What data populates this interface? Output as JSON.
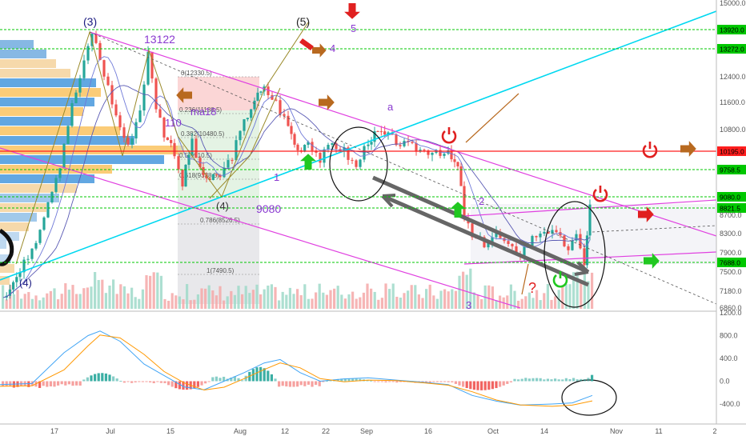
{
  "chart_data": {
    "type": "candlestick",
    "price_axis": {
      "ylim": [
        6860,
        15000
      ],
      "ticks": [
        "15000.0",
        "13920.0",
        "13272.0",
        "12400.0",
        "11600.0",
        "10800.0",
        "10195.0",
        "9758.5",
        "9080.0",
        "8821.5",
        "8700.0",
        "8300.0",
        "7900.0",
        "7688.0",
        "7500.0",
        "7180.0",
        "6860.0"
      ]
    },
    "indicator_axis": {
      "ylim": [
        -600,
        1200
      ],
      "ticks": [
        "1200.0",
        "800.0",
        "400.0",
        "0.0",
        "-400.0"
      ]
    },
    "x_ticks": [
      "17",
      "Jul",
      "15",
      "Aug",
      "12",
      "22",
      "Sep",
      "16",
      "Oct",
      "14",
      "Nov",
      "11",
      "2"
    ],
    "levels": [
      {
        "value": 13920,
        "label": "13920.0",
        "color": "#00c800"
      },
      {
        "value": 13272,
        "label": "13272.0",
        "color": "#00c800"
      },
      {
        "value": 10195,
        "label": "10195.0",
        "color": "#ff1e1e"
      },
      {
        "value": 9758.5,
        "label": "9758.5",
        "color": "#00c800"
      },
      {
        "value": 9080,
        "label": "9080.0",
        "color": "#00c800"
      },
      {
        "value": 8821.5,
        "label": "8821.5",
        "color": "#00c800"
      },
      {
        "value": 7688,
        "label": "7688.0",
        "color": "#00c800"
      }
    ],
    "fib_labels": [
      "0(12330.5)",
      "0.236(11188.5)",
      "0.382(10480.5)",
      "0.5(9910.5)",
      "0.618(9338.5)",
      "0.786(8526.5)",
      "1(7490.5)"
    ],
    "annotations": [
      "(3)",
      "(5)",
      "5",
      "4",
      "13122",
      "ma18",
      "110",
      "(4)",
      "9080",
      "1",
      "2",
      "3",
      "a",
      "(4)",
      "?"
    ],
    "colors": {
      "up": "#26a69a",
      "down": "#ef5350",
      "level_green": "#00c800",
      "level_red": "#ff1e1e",
      "channel": "#e040e0",
      "trend": "#00d8f0"
    }
  }
}
